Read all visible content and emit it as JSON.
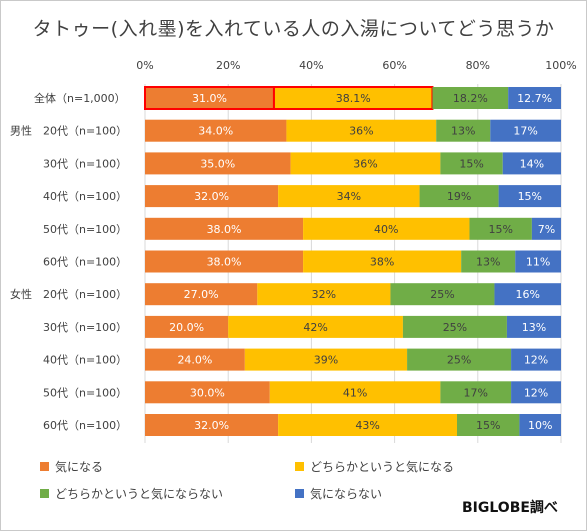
{
  "chart_data": {
    "type": "bar",
    "stacked": true,
    "orientation": "horizontal",
    "title": "タトゥー(入れ墨)を入れている人の入湯についてどう思うか",
    "xlim": [
      0,
      100
    ],
    "x_ticks": [
      "0%",
      "20%",
      "40%",
      "60%",
      "80%",
      "100%"
    ],
    "grid": true,
    "legend_position": "bottom",
    "categories": [
      {
        "group": "",
        "label": "全体（n=1,000）",
        "highlight": true
      },
      {
        "group": "男性",
        "label": "20代（n=100）"
      },
      {
        "group": "",
        "label": "30代（n=100）"
      },
      {
        "group": "",
        "label": "40代（n=100）"
      },
      {
        "group": "",
        "label": "50代（n=100）"
      },
      {
        "group": "",
        "label": "60代（n=100）"
      },
      {
        "group": "女性",
        "label": "20代（n=100）"
      },
      {
        "group": "",
        "label": "30代（n=100）"
      },
      {
        "group": "",
        "label": "40代（n=100）"
      },
      {
        "group": "",
        "label": "50代（n=100）"
      },
      {
        "group": "",
        "label": "60代（n=100）"
      }
    ],
    "series": [
      {
        "name": "気になる",
        "color": "#ed7d31",
        "label_color": "#ffffff",
        "values": [
          31.0,
          34.0,
          35.0,
          32.0,
          38.0,
          38.0,
          27.0,
          20.0,
          24.0,
          30.0,
          32.0
        ],
        "labels": [
          "31.0%",
          "34.0%",
          "35.0%",
          "32.0%",
          "38.0%",
          "38.0%",
          "27.0%",
          "20.0%",
          "24.0%",
          "30.0%",
          "32.0%"
        ]
      },
      {
        "name": "どちらかというと気になる",
        "color": "#ffc000",
        "label_color": "#404040",
        "values": [
          38.1,
          36,
          36,
          34,
          40,
          38,
          32,
          42,
          39,
          41,
          43
        ],
        "labels": [
          "38.1%",
          "36%",
          "36%",
          "34%",
          "40%",
          "38%",
          "32%",
          "42%",
          "39%",
          "41%",
          "43%"
        ]
      },
      {
        "name": "どちらかというと気にならない",
        "color": "#70ad47",
        "label_color": "#404040",
        "values": [
          18.2,
          13,
          15,
          19,
          15,
          13,
          25,
          25,
          25,
          17,
          15
        ],
        "labels": [
          "18.2%",
          "13%",
          "15%",
          "19%",
          "15%",
          "13%",
          "25%",
          "25%",
          "25%",
          "17%",
          "15%"
        ]
      },
      {
        "name": "気にならない",
        "color": "#4472c4",
        "label_color": "#ffffff",
        "values": [
          12.7,
          17,
          14,
          15,
          7,
          11,
          16,
          13,
          12,
          12,
          10
        ],
        "labels": [
          "12.7%",
          "17%",
          "14%",
          "15%",
          "7%",
          "11%",
          "16%",
          "13%",
          "12%",
          "12%",
          "10%"
        ]
      }
    ],
    "highlight_color": "#ff0000"
  },
  "source_note": "BIGLOBE調べ"
}
